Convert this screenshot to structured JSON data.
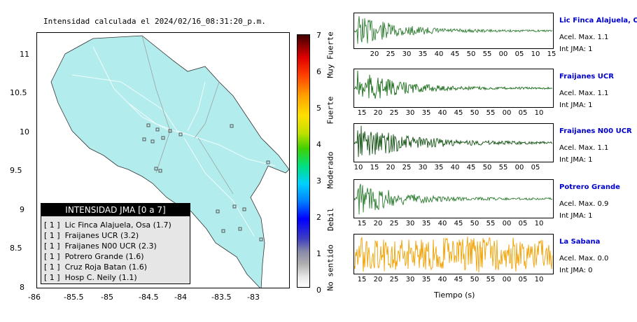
{
  "map": {
    "title": "Intensidad calculada el 2024/02/16_08:31:20_p.m.",
    "x_ticks": [
      "-86",
      "-85.5",
      "-85",
      "-84.5",
      "-84",
      "-83.5",
      "-83"
    ],
    "y_ticks": [
      "11",
      "10.5",
      "10",
      "9.5",
      "9",
      "8.5",
      "8"
    ],
    "land_color": "#b3ecec",
    "station_marker_color": "#555555"
  },
  "legend": {
    "header": "INTENSIDAD JMA [0 a 7]",
    "rows": [
      "[ 1 ]  Lic Finca Alajuela, Osa (1.7)",
      "[ 1 ]  Fraijanes UCR (3.2)",
      "[ 1 ]  Fraijanes N00 UCR (2.3)",
      "[ 1 ]  Potrero Grande (1.6)",
      "[ 1 ]  Cruz Roja Batan (1.6)",
      "[ 1 ]  Hosp C. Neily (1.1)"
    ]
  },
  "colorbar": {
    "numbers": [
      "7",
      "6",
      "5",
      "4",
      "3",
      "2",
      "1",
      "0"
    ],
    "words": [
      "Muy Fuerte",
      "Fuerte",
      "Moderado",
      "Debil",
      "No sentido"
    ]
  },
  "stations": [
    {
      "name": "Lic Finca Alajuela, Osa",
      "acel": "Acel. Max. 1.1",
      "int": "Int JMA: 1",
      "color": "#2e7d32",
      "ticks": [
        "20",
        "25",
        "30",
        "35",
        "40",
        "45",
        "50",
        "55",
        "00",
        "05",
        "10",
        "15"
      ]
    },
    {
      "name": "Fraijanes UCR",
      "acel": "Acel. Max. 1.1",
      "int": "Int JMA: 1",
      "color": "#1b6e1b",
      "ticks": [
        "15",
        "20",
        "25",
        "30",
        "35",
        "40",
        "45",
        "50",
        "55",
        "00",
        "05",
        "10"
      ]
    },
    {
      "name": "Fraijanes N00 UCR",
      "acel": "Acel. Max. 1.1",
      "int": "Int JMA: 1",
      "color": "#145214",
      "ticks": [
        "10",
        "15",
        "20",
        "25",
        "30",
        "35",
        "40",
        "45",
        "50",
        "55",
        "00",
        "05"
      ]
    },
    {
      "name": "Potrero Grande",
      "acel": "Acel. Max. 0.9",
      "int": "Int JMA: 1",
      "color": "#2e7d32",
      "ticks": [
        "15",
        "20",
        "25",
        "30",
        "35",
        "40",
        "45",
        "50",
        "55",
        "00",
        "05",
        "10"
      ]
    },
    {
      "name": "La Sabana",
      "acel": "Acel. Max. 0.0",
      "int": "Int JMA: 0",
      "color": "#f0a000",
      "ticks": [
        "15",
        "20",
        "25",
        "30",
        "35",
        "40",
        "45",
        "50",
        "55",
        "00",
        "05",
        "10"
      ]
    }
  ],
  "xlabel": "Tiempo (s)",
  "chart_data": {
    "type": "line",
    "title": "Intensidad calculada el 2024/02/16_08:31:20_p.m.",
    "xlabel": "Tiempo (s)",
    "ylabel": "",
    "map_xlim": [
      -86,
      -82.6
    ],
    "map_ylim": [
      8,
      11.3
    ],
    "colorbar_range": [
      0,
      7
    ],
    "series": [
      {
        "name": "Lic Finca Alajuela, Osa",
        "acel_max": 1.1,
        "int_jma": 1
      },
      {
        "name": "Fraijanes UCR",
        "acel_max": 1.1,
        "int_jma": 1
      },
      {
        "name": "Fraijanes N00 UCR",
        "acel_max": 1.1,
        "int_jma": 1
      },
      {
        "name": "Potrero Grande",
        "acel_max": 0.9,
        "int_jma": 1
      },
      {
        "name": "La Sabana",
        "acel_max": 0.0,
        "int_jma": 0
      }
    ],
    "legend_values": [
      1.7,
      3.2,
      2.3,
      1.6,
      1.6,
      1.1
    ]
  }
}
